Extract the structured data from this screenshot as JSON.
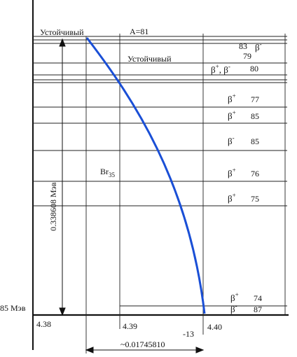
{
  "texts": {
    "stable_top": "Устойчивый",
    "stable_mid": "Устойчивый",
    "a_label": "A=81",
    "v83": "83",
    "beta_minus_83": "β",
    "sup_minus_83": "-",
    "v79": "79",
    "beta_pm": "β",
    "sup_plus_pm": "+",
    "beta_pm_sep": ", β",
    "sup_minus_pm": "-",
    "v80": "80",
    "beta_77": "β",
    "sup_77": "+",
    "v77": "77",
    "beta_85a": "β",
    "sup_85a": "+",
    "v85a": "85",
    "beta_85b": "β",
    "sup_85b": "-",
    "v85b": "85",
    "beta_76": "β",
    "sup_76": "+",
    "v76": "76",
    "beta_75": "β",
    "sup_75": "+",
    "v75": "75",
    "beta_74": "β",
    "sup_74": "+",
    "v74": "74",
    "beta_87": "β",
    "sup_87": "-",
    "v87": "87",
    "br_main": "Br",
    "br_sub": "35",
    "energy_vertical": "0.338608 Мэв",
    "energy_left": "85 Мэв",
    "x438": "4.38",
    "x439": "4.39",
    "x440": "4.40",
    "minus13": "-13",
    "bottom_span": "~0.01745810"
  },
  "colors": {
    "line": "#222222",
    "curve": "#1a4fd6",
    "text": "#111111"
  }
}
